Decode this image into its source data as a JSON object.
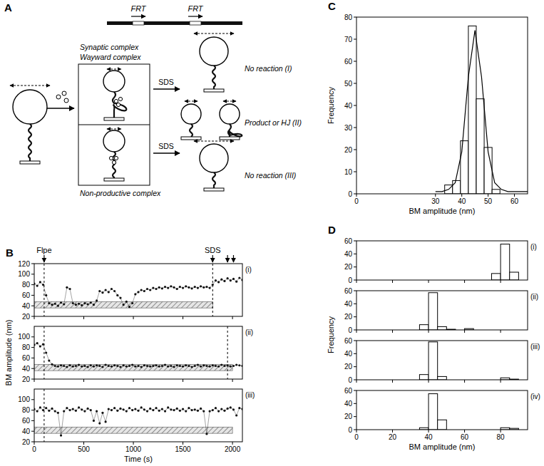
{
  "diagram": {
    "panel": "A",
    "top_labels": [
      "FRT",
      "FRT"
    ],
    "complex_labels": [
      "Synaptic complex",
      "Wayward complex",
      "Non-productive complex"
    ],
    "treatment": [
      "SDS",
      "SDS"
    ],
    "outcomes": [
      "No reaction (I)",
      "Product or HJ (II)",
      "No reaction (III)"
    ]
  },
  "chart_data": [
    {
      "type": "scatter",
      "panel": "B",
      "label": "(i)",
      "x": [
        0,
        30,
        60,
        90,
        120,
        150,
        180,
        210,
        240,
        270,
        300,
        330,
        360,
        390,
        420,
        450,
        480,
        510,
        540,
        570,
        600,
        630,
        660,
        690,
        720,
        750,
        780,
        810,
        840,
        870,
        900,
        930,
        960,
        990,
        1020,
        1050,
        1080,
        1110,
        1140,
        1170,
        1200,
        1230,
        1260,
        1290,
        1320,
        1350,
        1380,
        1410,
        1440,
        1470,
        1500,
        1530,
        1560,
        1590,
        1620,
        1650,
        1680,
        1710,
        1740,
        1770,
        1800,
        1830,
        1860,
        1890,
        1920,
        1950,
        1980,
        2010,
        2040,
        2070,
        2100
      ],
      "series": [
        {
          "color": "#111111",
          "marker": "dot",
          "line_style": "solid",
          "values": [
            82,
            78,
            85,
            80,
            60,
            45,
            42,
            44,
            40,
            46,
            43,
            75,
            72,
            45,
            42,
            44,
            41,
            45,
            43,
            46,
            42,
            50,
            68,
            65,
            70,
            66,
            72,
            68,
            60,
            55,
            42,
            48,
            38,
            45,
            62,
            66,
            70,
            68,
            72,
            70,
            74,
            72,
            75,
            73,
            76,
            74,
            77,
            75,
            72,
            76,
            74,
            77,
            75,
            73,
            76,
            74,
            77,
            75,
            76,
            74,
            80,
            88,
            85,
            90,
            87,
            92,
            88,
            91,
            86,
            93,
            89
          ]
        }
      ],
      "xlim": [
        0,
        2100
      ],
      "ylim": [
        20,
        120
      ],
      "xticks": [
        0,
        500,
        1000,
        1500,
        2000
      ],
      "yticks": [
        20,
        40,
        60,
        80,
        100,
        120
      ],
      "tick_labels": "y",
      "band": {
        "x": [
          0,
          1800
        ],
        "y": [
          36,
          48
        ]
      },
      "vlines": [
        100,
        1800
      ],
      "annotations": [
        {
          "text": "Flpe",
          "x": [
            100
          ]
        },
        {
          "text": "SDS",
          "x": [
            1800,
            1950,
            2010
          ]
        }
      ]
    },
    {
      "type": "scatter",
      "label": "(ii)",
      "y_label": "BM amplitude (nm)",
      "x": [
        0,
        30,
        60,
        90,
        120,
        150,
        180,
        210,
        240,
        270,
        300,
        330,
        360,
        390,
        420,
        450,
        480,
        510,
        540,
        570,
        600,
        630,
        660,
        690,
        720,
        750,
        780,
        810,
        840,
        870,
        900,
        930,
        960,
        990,
        1020,
        1050,
        1080,
        1110,
        1140,
        1170,
        1200,
        1230,
        1260,
        1290,
        1320,
        1350,
        1380,
        1410,
        1440,
        1470,
        1500,
        1530,
        1560,
        1590,
        1620,
        1650,
        1680,
        1710,
        1740,
        1770,
        1800,
        1830,
        1860,
        1890,
        1920,
        1950,
        1980,
        2010,
        2040,
        2070,
        2100
      ],
      "series": [
        {
          "color": "#111111",
          "marker": "dot",
          "line_style": "solid",
          "values": [
            85,
            88,
            82,
            86,
            70,
            55,
            48,
            45,
            44,
            46,
            45,
            43,
            46,
            44,
            45,
            47,
            44,
            45,
            43,
            46,
            44,
            46,
            45,
            43,
            47,
            45,
            44,
            46,
            45,
            43,
            46,
            44,
            45,
            47,
            44,
            45,
            43,
            46,
            45,
            44,
            45,
            46,
            44,
            45,
            47,
            44,
            45,
            43,
            46,
            45,
            44,
            46,
            45,
            43,
            45,
            47,
            44,
            46,
            45,
            44,
            46,
            45,
            44,
            47,
            45,
            46,
            44,
            45,
            47,
            46,
            45
          ]
        }
      ],
      "xlim": [
        0,
        2100
      ],
      "ylim": [
        20,
        120
      ],
      "xticks": [
        0,
        500,
        1000,
        1500,
        2000
      ],
      "yticks": [
        20,
        40,
        60,
        80,
        100
      ],
      "tick_labels": "y",
      "band": {
        "x": [
          0,
          2000
        ],
        "y": [
          36,
          48
        ]
      },
      "vlines": [
        100,
        1950
      ]
    },
    {
      "type": "scatter",
      "label": "(iii)",
      "x_label": "Time (s)",
      "x": [
        0,
        30,
        60,
        90,
        120,
        150,
        180,
        210,
        240,
        270,
        300,
        330,
        360,
        390,
        420,
        450,
        480,
        510,
        540,
        570,
        600,
        630,
        660,
        690,
        720,
        750,
        780,
        810,
        840,
        870,
        900,
        930,
        960,
        990,
        1020,
        1050,
        1080,
        1110,
        1140,
        1170,
        1200,
        1230,
        1260,
        1290,
        1320,
        1350,
        1380,
        1410,
        1440,
        1470,
        1500,
        1530,
        1560,
        1590,
        1620,
        1650,
        1680,
        1710,
        1740,
        1770,
        1800,
        1830,
        1860,
        1890,
        1920,
        1950,
        1980,
        2010,
        2040,
        2070,
        2100
      ],
      "series": [
        {
          "color": "#111111",
          "marker": "dot",
          "line_style": "solid",
          "values": [
            82,
            78,
            85,
            80,
            84,
            79,
            83,
            78,
            75,
            32,
            78,
            84,
            80,
            82,
            79,
            85,
            81,
            78,
            83,
            80,
            60,
            78,
            55,
            75,
            58,
            82,
            80,
            84,
            79,
            83,
            81,
            78,
            84,
            80,
            82,
            79,
            85,
            81,
            78,
            83,
            80,
            84,
            79,
            82,
            78,
            85,
            81,
            80,
            83,
            79,
            82,
            78,
            84,
            80,
            81,
            79,
            83,
            78,
            35,
            78,
            80,
            84,
            78,
            82,
            79,
            83,
            85,
            81,
            70,
            84,
            82
          ]
        }
      ],
      "xlim": [
        0,
        2100
      ],
      "ylim": [
        20,
        120
      ],
      "xticks": [
        0,
        500,
        1000,
        1500,
        2000
      ],
      "yticks": [
        20,
        40,
        60,
        80,
        100
      ],
      "tick_labels": true,
      "band": {
        "x": [
          0,
          2000
        ],
        "y": [
          36,
          48
        ]
      },
      "vlines": [
        100
      ]
    },
    {
      "type": "histogram",
      "panel": "C",
      "x_label": "BM amplitude (nm)",
      "y_label": "Frequency",
      "bins": [
        33.5,
        36.5,
        39.5,
        42.5,
        45.5,
        48.5,
        51.5,
        54.5
      ],
      "values": [
        4,
        6,
        24,
        76,
        43,
        21,
        2
      ],
      "color": "#ffffff",
      "fit": {
        "x": [
          30,
          32.5,
          35,
          37.5,
          40,
          42.5,
          45,
          47.5,
          50,
          52.5,
          55,
          57.5,
          60,
          62.5,
          65
        ],
        "values": [
          1,
          1,
          2,
          5,
          19,
          53,
          74,
          53,
          19,
          5,
          2,
          1,
          1,
          1,
          1
        ]
      },
      "xlim": [
        0,
        65
      ],
      "ylim": [
        0,
        80
      ],
      "xticks": [
        0,
        30,
        40,
        50,
        60
      ],
      "yticks": [
        0,
        10,
        20,
        30,
        40,
        50,
        60,
        70,
        80
      ],
      "tick_labels": true
    },
    {
      "type": "histogram",
      "panel": "D",
      "label": "(i)",
      "bins": [
        75,
        80,
        85,
        90
      ],
      "values": [
        10,
        55,
        12
      ],
      "color": "#ffffff",
      "xlim": [
        0,
        95
      ],
      "ylim": [
        0,
        60
      ],
      "xticks": [
        0,
        20,
        40,
        60,
        80
      ],
      "yticks": [
        0,
        20,
        40,
        60
      ],
      "tick_labels": "y"
    },
    {
      "type": "histogram",
      "label": "(ii)",
      "y_label": "Frequency",
      "bins": [
        35,
        40,
        45,
        50,
        55,
        60,
        65,
        70,
        75,
        80,
        85,
        90
      ],
      "values": [
        8,
        57,
        5,
        1,
        0,
        2,
        0,
        0,
        0,
        0,
        0
      ],
      "color": "#ffffff",
      "xlim": [
        0,
        95
      ],
      "ylim": [
        0,
        60
      ],
      "xticks": [
        0,
        20,
        40,
        60,
        80
      ],
      "yticks": [
        0,
        20,
        40,
        60
      ],
      "tick_labels": "y"
    },
    {
      "type": "histogram",
      "label": "(iii)",
      "bins": [
        35,
        40,
        45,
        50,
        55,
        60,
        65,
        70,
        75,
        80,
        85,
        90
      ],
      "values": [
        8,
        58,
        5,
        0,
        0,
        0,
        0,
        0,
        0,
        3,
        1
      ],
      "color": "#ffffff",
      "xlim": [
        0,
        95
      ],
      "ylim": [
        0,
        60
      ],
      "xticks": [
        0,
        20,
        40,
        60,
        80
      ],
      "yticks": [
        0,
        20,
        40,
        60
      ],
      "tick_labels": "y"
    },
    {
      "type": "histogram",
      "label": "(iv)",
      "x_label": "BM amplitude (nm)",
      "bins": [
        35,
        40,
        45,
        50,
        55,
        60,
        65,
        70,
        75,
        80,
        85,
        90
      ],
      "values": [
        3,
        55,
        15,
        0,
        0,
        0,
        0,
        0,
        0,
        3,
        2
      ],
      "color": "#ffffff",
      "xlim": [
        0,
        95
      ],
      "ylim": [
        0,
        60
      ],
      "xticks": [
        0,
        20,
        40,
        60,
        80
      ],
      "yticks": [
        0,
        20,
        40,
        60
      ],
      "tick_labels": true
    }
  ]
}
